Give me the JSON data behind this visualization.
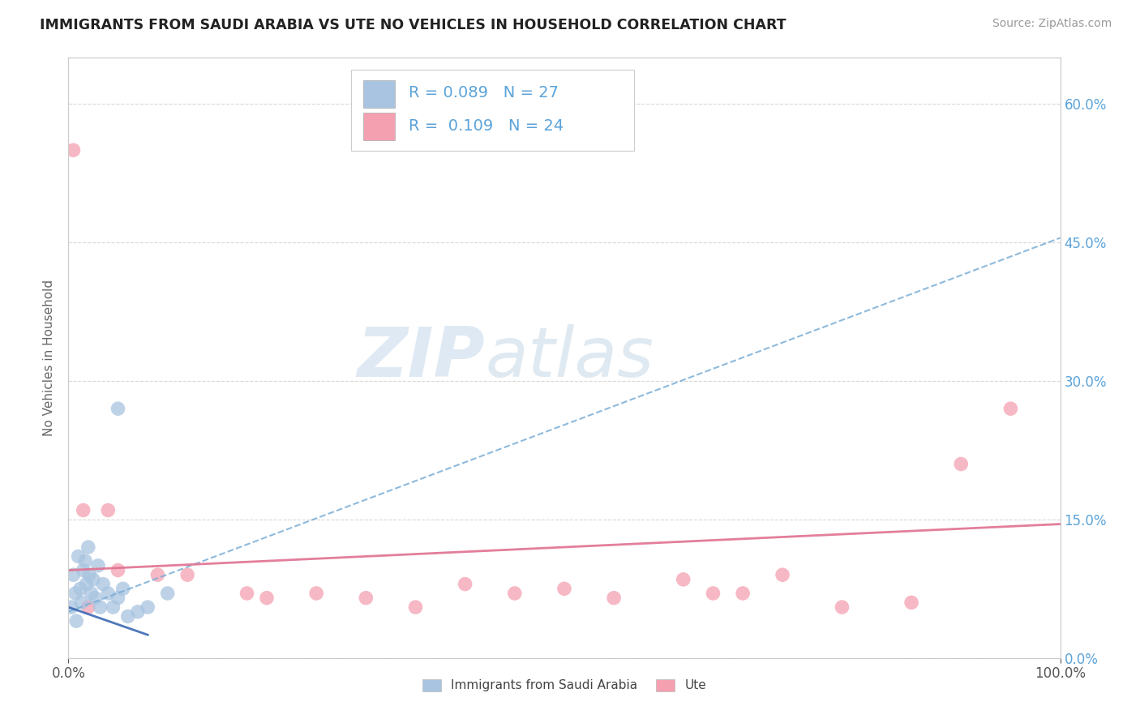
{
  "title": "IMMIGRANTS FROM SAUDI ARABIA VS UTE NO VEHICLES IN HOUSEHOLD CORRELATION CHART",
  "source_text": "Source: ZipAtlas.com",
  "ylabel": "No Vehicles in Household",
  "xlim": [
    0,
    100
  ],
  "ylim": [
    0,
    65
  ],
  "x_tick_labels": [
    "0.0%",
    "100.0%"
  ],
  "y_tick_labels": [
    "0.0%",
    "15.0%",
    "30.0%",
    "45.0%",
    "60.0%"
  ],
  "y_tick_values": [
    0,
    15,
    30,
    45,
    60
  ],
  "legend_label1": "Immigrants from Saudi Arabia",
  "legend_label2": "Ute",
  "r1": "0.089",
  "n1": "27",
  "r2": "0.109",
  "n2": "24",
  "color1": "#a8c4e0",
  "color2": "#f4a0b0",
  "line1_color": "#7aaed6",
  "line2_color": "#e07090",
  "watermark_zip": "ZIP",
  "watermark_atlas": "atlas",
  "background_color": "#ffffff",
  "plot_bg_color": "#ffffff",
  "grid_color": "#d8d8d8",
  "scatter1_x": [
    0.3,
    0.5,
    0.7,
    0.8,
    1.0,
    1.2,
    1.3,
    1.5,
    1.7,
    1.8,
    2.0,
    2.1,
    2.3,
    2.5,
    2.7,
    3.0,
    3.2,
    3.5,
    4.0,
    4.5,
    5.0,
    5.5,
    6.0,
    7.0,
    8.0,
    5.0,
    10.0
  ],
  "scatter1_y": [
    5.5,
    9.0,
    7.0,
    4.0,
    11.0,
    7.5,
    6.0,
    9.5,
    10.5,
    8.0,
    12.0,
    9.0,
    7.0,
    8.5,
    6.5,
    10.0,
    5.5,
    8.0,
    7.0,
    5.5,
    6.5,
    7.5,
    4.5,
    5.0,
    5.5,
    27.0,
    7.0
  ],
  "scatter2_x": [
    0.5,
    1.5,
    4.0,
    5.0,
    9.0,
    12.0,
    18.0,
    20.0,
    25.0,
    30.0,
    35.0,
    40.0,
    45.0,
    50.0,
    55.0,
    62.0,
    65.0,
    68.0,
    72.0,
    78.0,
    85.0,
    90.0,
    95.0,
    2.0
  ],
  "scatter2_y": [
    55.0,
    16.0,
    16.0,
    9.5,
    9.0,
    9.0,
    7.0,
    6.5,
    7.0,
    6.5,
    5.5,
    8.0,
    7.0,
    7.5,
    6.5,
    8.5,
    7.0,
    7.0,
    9.0,
    5.5,
    6.0,
    21.0,
    27.0,
    5.5
  ],
  "line1_x0": 0,
  "line1_x1": 100,
  "line1_y0": 5.0,
  "line1_y1": 45.5,
  "line2_x0": 0,
  "line2_x1": 100,
  "line2_y0": 9.5,
  "line2_y1": 14.5
}
